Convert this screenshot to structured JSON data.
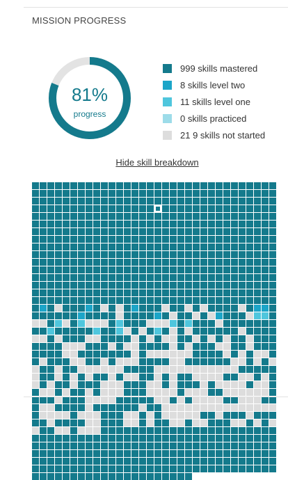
{
  "section": {
    "title": "MISSION PROGRESS"
  },
  "progress": {
    "percent_label": "81%",
    "sub_label": "progress",
    "fraction": 0.81,
    "ring_color": "#147a8c",
    "ring_track_color": "#e3e3e3"
  },
  "legend": [
    {
      "label": "999 skills mastered",
      "color": "#147a8c"
    },
    {
      "label": "8 skills level two",
      "color": "#1ca5c8"
    },
    {
      "label": "11  skills level one",
      "color": "#4fc6dd"
    },
    {
      "label": "0 skills practiced",
      "color": "#9ddce9"
    },
    {
      "label": "21 9 skills not started",
      "color": "#dddddd"
    }
  ],
  "toggle_label": "Hide skill breakdown",
  "grid": {
    "columns": 32,
    "colors": {
      "mastered": "#147a8c",
      "level_two": "#1ca5c8",
      "level_one": "#4fc6dd",
      "practiced": "#9ddce9",
      "not_started": "#dddddd"
    },
    "counts": {
      "mastered": 999,
      "level_two": 8,
      "level_one": 11,
      "practiced": 0,
      "not_started": 219
    }
  }
}
